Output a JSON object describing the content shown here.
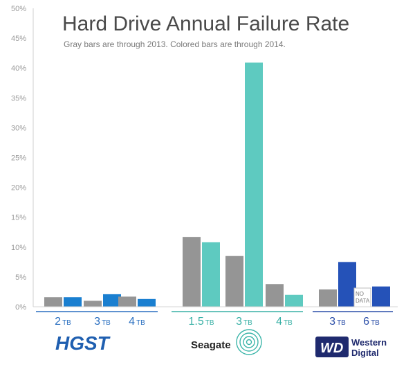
{
  "chart_data": {
    "type": "bar",
    "title": "Hard Drive Annual Failure Rate",
    "subtitle": "Gray bars are through 2013.  Colored bars are through 2014.",
    "xlabel": "",
    "ylabel": "",
    "ylim": [
      0,
      50
    ],
    "yticks": [
      "0%",
      "5%",
      "10%",
      "15%",
      "20%",
      "25%",
      "30%",
      "35%",
      "40%",
      "45%",
      "50%"
    ],
    "grid": false,
    "legend": "none",
    "categories": [
      {
        "brand": "HGST",
        "size": "2",
        "unit": "TB"
      },
      {
        "brand": "HGST",
        "size": "3",
        "unit": "TB"
      },
      {
        "brand": "HGST",
        "size": "4",
        "unit": "TB"
      },
      {
        "brand": "Seagate",
        "size": "1.5",
        "unit": "TB"
      },
      {
        "brand": "Seagate",
        "size": "3",
        "unit": "TB"
      },
      {
        "brand": "Seagate",
        "size": "4",
        "unit": "TB"
      },
      {
        "brand": "Western Digital",
        "size": "3",
        "unit": "TB"
      },
      {
        "brand": "Western Digital",
        "size": "6",
        "unit": "TB"
      }
    ],
    "series": [
      {
        "values": [
          1.6,
          1.0,
          1.7,
          11.7,
          8.5,
          3.8,
          2.9,
          null
        ]
      },
      {
        "values": [
          1.6,
          2.1,
          1.3,
          10.8,
          40.9,
          2.0,
          7.5,
          3.4
        ]
      }
    ],
    "no_data_label": [
      "NO",
      "DATA"
    ],
    "brands": [
      "HGST",
      "Seagate",
      "Western Digital"
    ],
    "brand_logos": {
      "hgst": "HGST",
      "seagate": "Seagate",
      "wd_mark": "WD",
      "wd_line1": "Western",
      "wd_line2": "Digital"
    },
    "colors": {
      "gray": "#959595",
      "hgst_bar": "#1a7fd0",
      "hgst_text": "#2a6fc0",
      "seagate_bar": "#5ecac0",
      "seagate_text": "#38b0a5",
      "wd_bar": "#2552b8",
      "wd_text": "#2b4ea8"
    }
  }
}
